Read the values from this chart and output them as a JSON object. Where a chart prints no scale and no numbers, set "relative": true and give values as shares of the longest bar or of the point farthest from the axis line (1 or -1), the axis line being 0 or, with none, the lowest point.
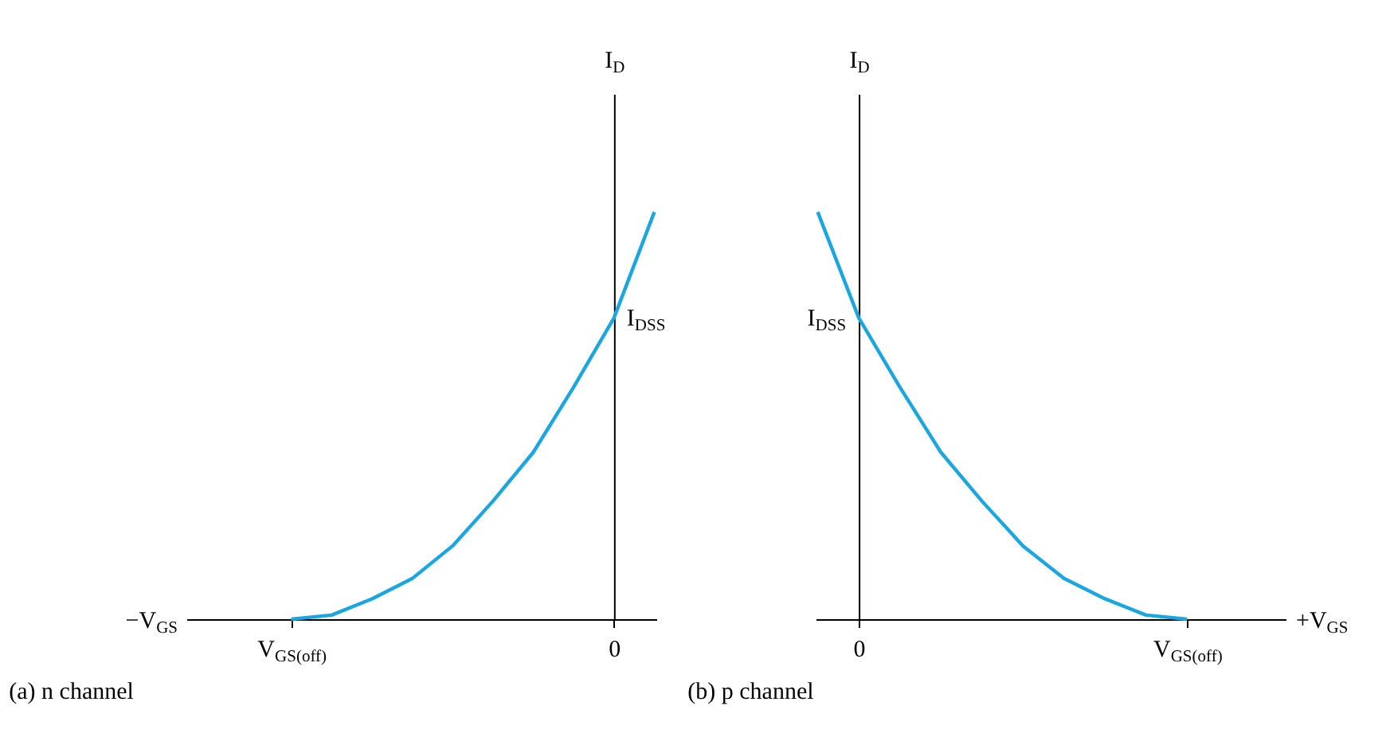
{
  "chart_data": [
    {
      "type": "line",
      "title": "(a) n channel",
      "xlabel": "−V$_{GS}$",
      "ylabel": "I$_{D}$",
      "relative": true,
      "categories": [
        "V$_{GS(off)}$",
        null,
        null,
        null,
        null,
        null,
        null,
        null,
        "0",
        null
      ],
      "series": [
        {
          "color": "#1aa6e0",
          "values": [
            0,
            0.01,
            0.05,
            0.1,
            0.18,
            0.29,
            0.41,
            0.57,
            0.74,
            1
          ]
        }
      ],
      "annotations": [
        {
          "text": "I$_{DSS}$",
          "x": "0",
          "y": 0.74
        }
      ]
    },
    {
      "type": "line",
      "title": "(b) p channel",
      "xlabel": "+V$_{GS}$",
      "ylabel": "I$_{D}$",
      "relative": true,
      "categories": [
        null,
        "0",
        null,
        null,
        null,
        null,
        null,
        null,
        null,
        "V$_{GS(off)}$"
      ],
      "series": [
        {
          "color": "#1aa6e0",
          "values": [
            1,
            0.74,
            0.57,
            0.41,
            0.29,
            0.18,
            0.1,
            0.05,
            0.01,
            0
          ]
        }
      ],
      "annotations": [
        {
          "text": "I$_{DSS}$",
          "x": "0",
          "y": 0.74
        }
      ]
    }
  ]
}
